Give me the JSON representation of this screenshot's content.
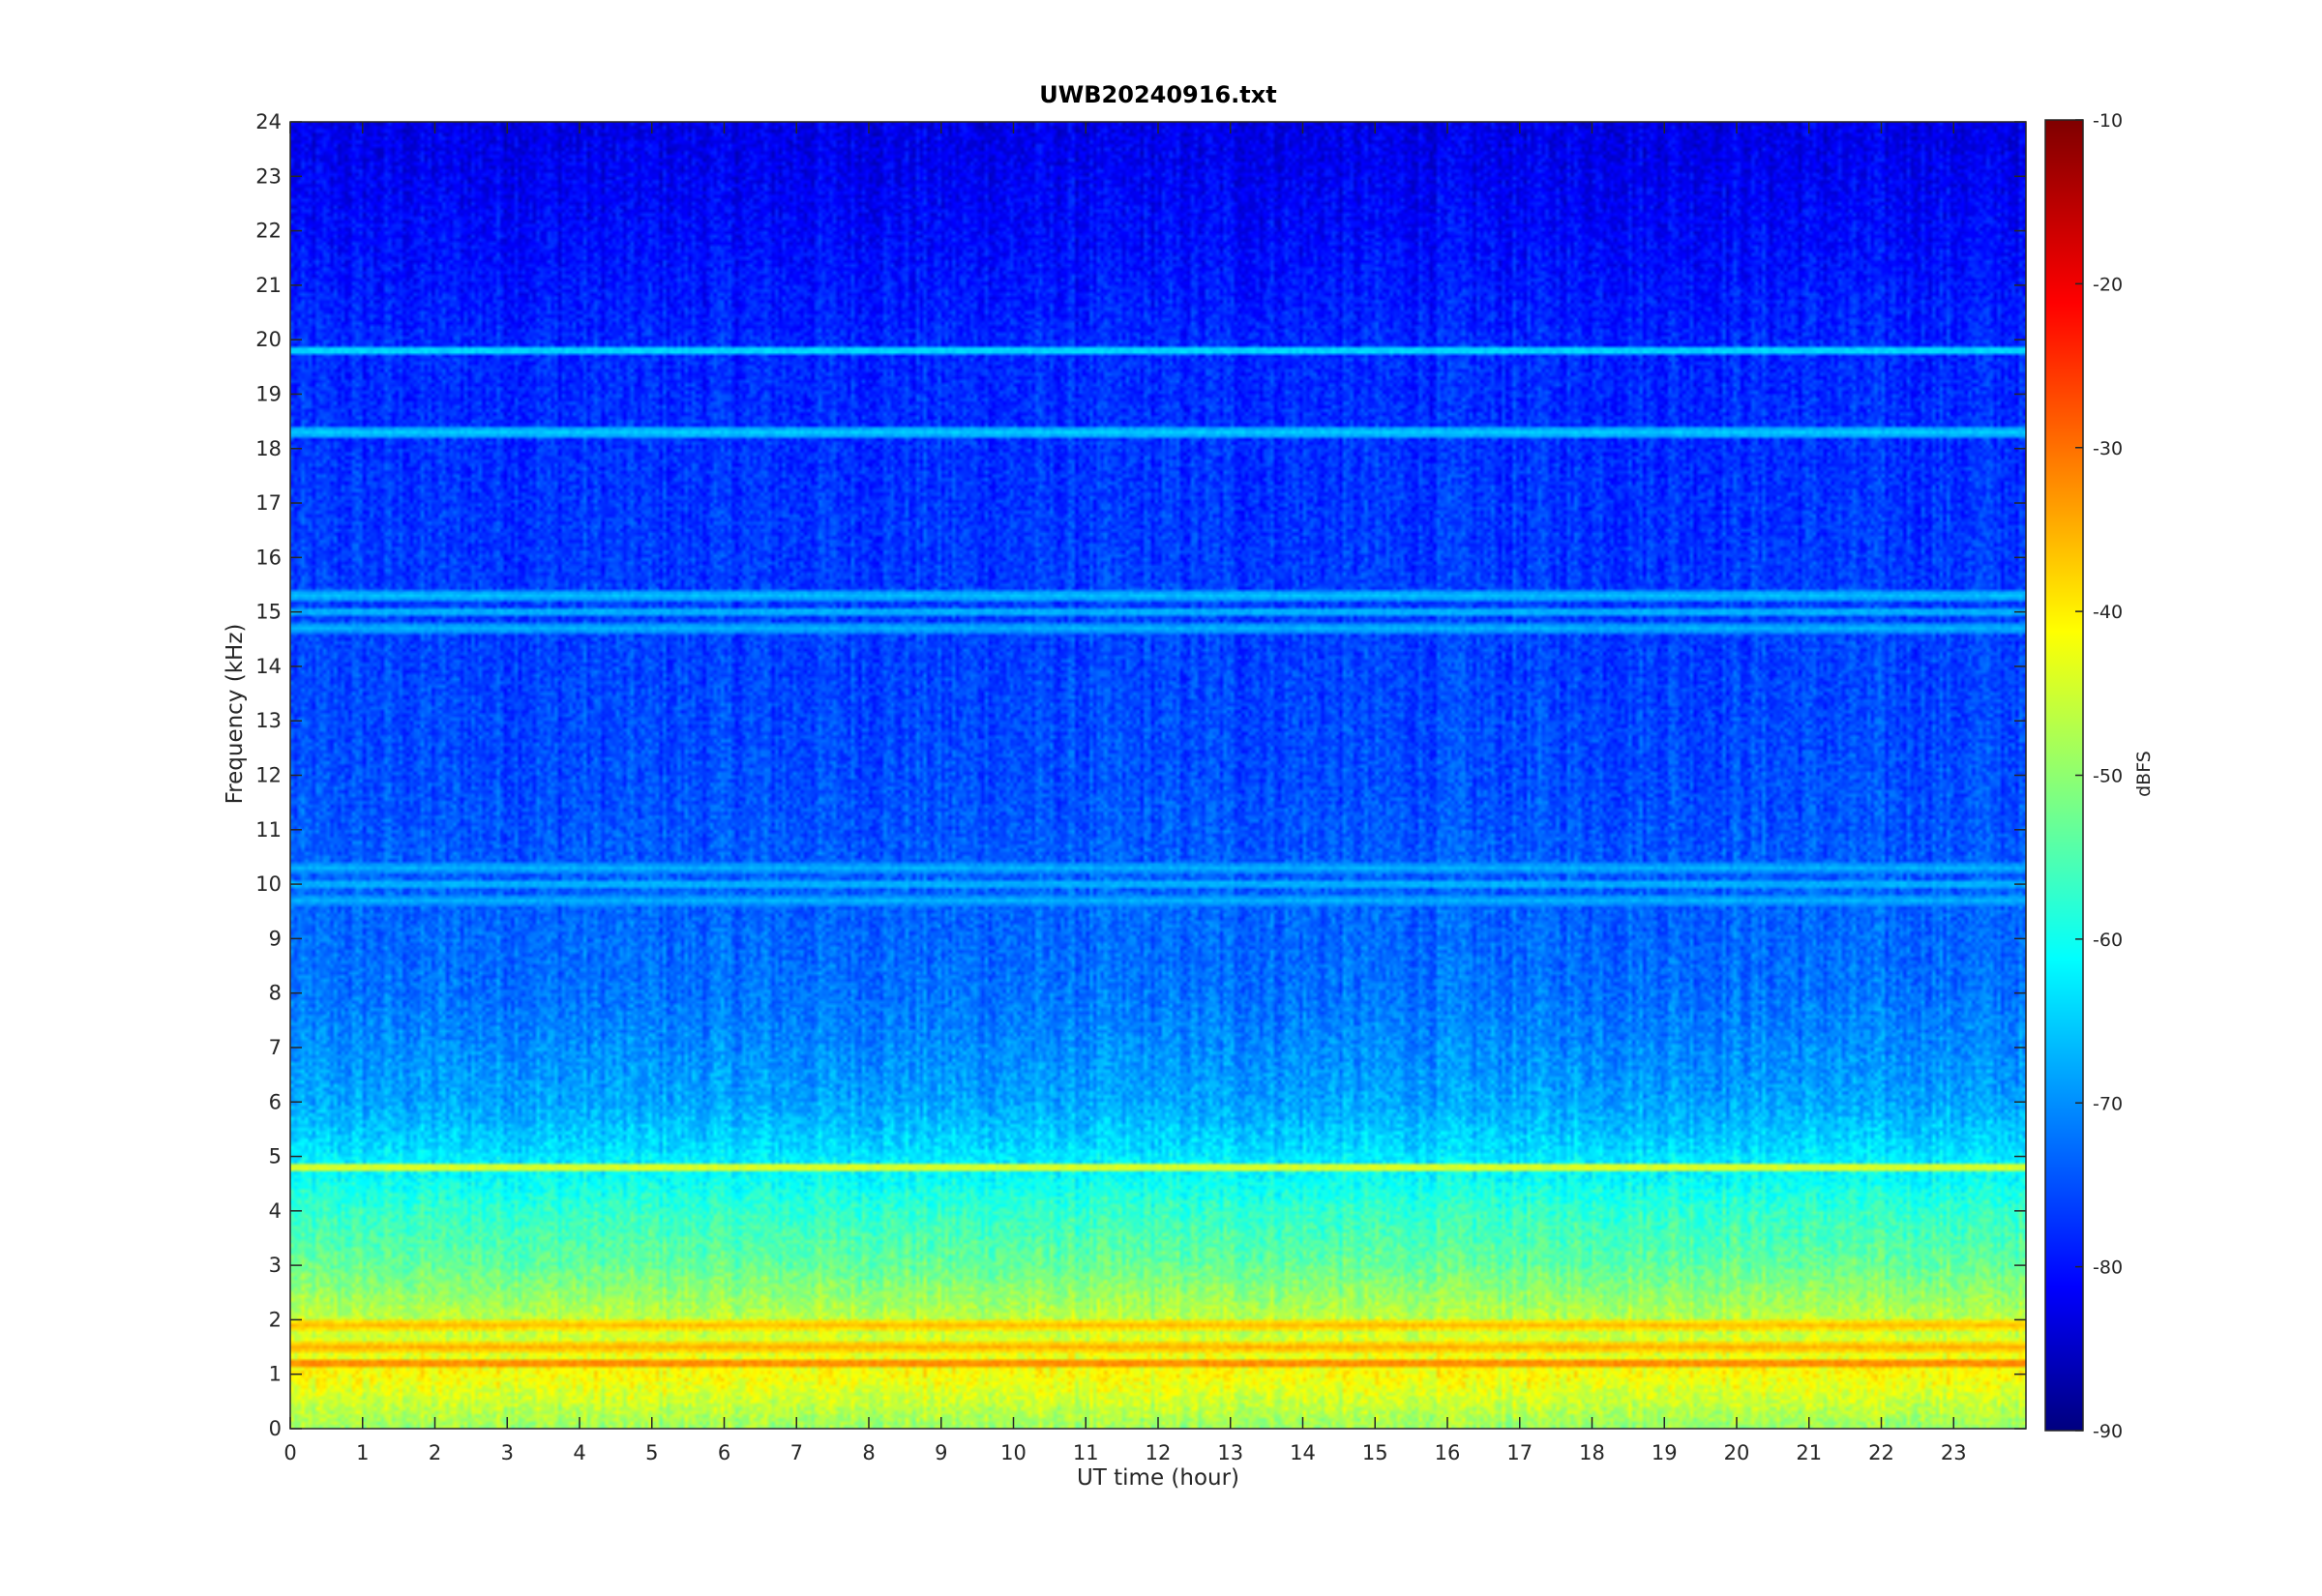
{
  "chart_data": {
    "type": "heatmap",
    "title": "UWB20240916.txt",
    "xlabel": "UT time (hour)",
    "ylabel": "Frequency (kHz)",
    "xlim": [
      0,
      24
    ],
    "ylim": [
      0,
      24
    ],
    "x_ticks": [
      0,
      1,
      2,
      3,
      4,
      5,
      6,
      7,
      8,
      9,
      10,
      11,
      12,
      13,
      14,
      15,
      16,
      17,
      18,
      19,
      20,
      21,
      22,
      23
    ],
    "y_ticks": [
      0,
      1,
      2,
      3,
      4,
      5,
      6,
      7,
      8,
      9,
      10,
      11,
      12,
      13,
      14,
      15,
      16,
      17,
      18,
      19,
      20,
      21,
      22,
      23,
      24
    ],
    "colormap": "jet",
    "colorbar": {
      "label": "dBFS",
      "clim": [
        -90,
        -10
      ],
      "ticks": [
        -90,
        -80,
        -70,
        -60,
        -50,
        -40,
        -30,
        -20,
        -10
      ]
    },
    "horizontal_bands_khz": [
      {
        "freq": 19.8,
        "level": -62
      },
      {
        "freq": 18.3,
        "level": -64
      },
      {
        "freq": 15.3,
        "level": -65
      },
      {
        "freq": 15.0,
        "level": -65
      },
      {
        "freq": 14.7,
        "level": -66
      },
      {
        "freq": 10.3,
        "level": -66
      },
      {
        "freq": 10.0,
        "level": -65
      },
      {
        "freq": 9.7,
        "level": -66
      },
      {
        "freq": 5.0,
        "level": -62
      },
      {
        "freq": 4.8,
        "level": -42
      },
      {
        "freq": 1.9,
        "level": -35
      },
      {
        "freq": 1.5,
        "level": -34
      },
      {
        "freq": 1.2,
        "level": -30
      }
    ],
    "background_level_profile": [
      {
        "freq": 0,
        "level": -48
      },
      {
        "freq": 1,
        "level": -40
      },
      {
        "freq": 2,
        "level": -45
      },
      {
        "freq": 3,
        "level": -52
      },
      {
        "freq": 4,
        "level": -56
      },
      {
        "freq": 5,
        "level": -62
      },
      {
        "freq": 6,
        "level": -67
      },
      {
        "freq": 8,
        "level": -71
      },
      {
        "freq": 12,
        "level": -74
      },
      {
        "freq": 20,
        "level": -77
      },
      {
        "freq": 24,
        "level": -82
      }
    ]
  },
  "colors": {
    "axis": "#262626",
    "background": "#ffffff"
  }
}
